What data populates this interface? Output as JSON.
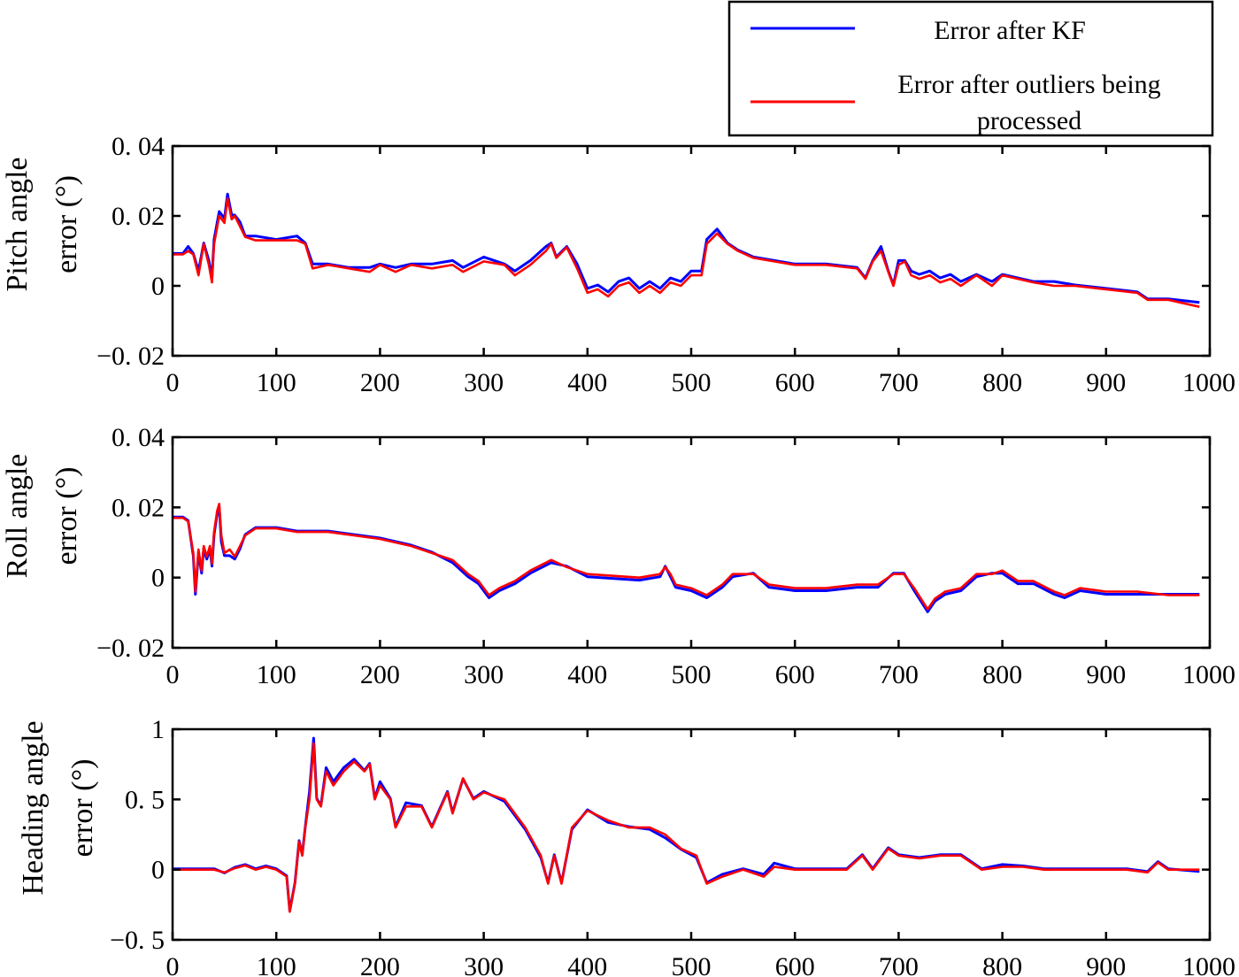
{
  "legend": {
    "placement": "top-right",
    "entries": [
      {
        "label": "Error after KF",
        "color": "#0000ff"
      },
      {
        "label_line1": "Error after outliers being",
        "label_line2": "processed",
        "color": "#ff0000"
      }
    ]
  },
  "chart_data": [
    {
      "type": "line",
      "ylabel_line1": "Pitch angle",
      "ylabel_line2": "error (°)",
      "xlim": [
        0,
        1000
      ],
      "ylim": [
        -0.02,
        0.04
      ],
      "xticks": [
        "0",
        "100",
        "200",
        "300",
        "400",
        "500",
        "600",
        "700",
        "800",
        "900",
        "1000"
      ],
      "yticks": [
        {
          "v": 0.04,
          "label": "0. 04"
        },
        {
          "v": 0.02,
          "label": "0. 02"
        },
        {
          "v": 0,
          "label": "0"
        },
        {
          "v": -0.02,
          "label": "−0. 02"
        }
      ],
      "grid": false,
      "x": [
        0,
        10,
        15,
        20,
        25,
        30,
        35,
        38,
        40,
        45,
        50,
        53,
        57,
        60,
        65,
        70,
        80,
        100,
        120,
        128,
        135,
        150,
        170,
        190,
        200,
        215,
        230,
        250,
        270,
        280,
        300,
        320,
        330,
        345,
        360,
        365,
        370,
        380,
        390,
        400,
        410,
        420,
        430,
        440,
        450,
        460,
        470,
        480,
        490,
        500,
        510,
        515,
        525,
        535,
        545,
        560,
        580,
        600,
        630,
        660,
        668,
        675,
        683,
        690,
        695,
        700,
        706,
        712,
        720,
        730,
        740,
        750,
        760,
        775,
        790,
        800,
        815,
        830,
        850,
        870,
        900,
        930,
        940,
        960,
        990
      ],
      "series": [
        {
          "name": "Error after KF",
          "color": "#0000ff",
          "values": [
            0.009,
            0.009,
            0.011,
            0.009,
            0.004,
            0.012,
            0.007,
            0.002,
            0.013,
            0.021,
            0.019,
            0.026,
            0.02,
            0.02,
            0.018,
            0.014,
            0.014,
            0.013,
            0.014,
            0.012,
            0.006,
            0.006,
            0.005,
            0.005,
            0.006,
            0.005,
            0.006,
            0.006,
            0.007,
            0.005,
            0.008,
            0.006,
            0.004,
            0.007,
            0.011,
            0.012,
            0.008,
            0.011,
            0.006,
            -0.001,
            0.0,
            -0.002,
            0.001,
            0.002,
            -0.001,
            0.001,
            -0.001,
            0.002,
            0.001,
            0.004,
            0.004,
            0.013,
            0.016,
            0.012,
            0.01,
            0.008,
            0.007,
            0.006,
            0.006,
            0.005,
            0.002,
            0.007,
            0.011,
            0.004,
            0.0,
            0.007,
            0.007,
            0.004,
            0.003,
            0.004,
            0.002,
            0.003,
            0.001,
            0.003,
            0.001,
            0.003,
            0.002,
            0.001,
            0.001,
            0.0,
            -0.001,
            -0.002,
            -0.004,
            -0.004,
            -0.005
          ]
        },
        {
          "name": "Error after outliers being processed",
          "color": "#ff0000",
          "values": [
            0.009,
            0.009,
            0.01,
            0.009,
            0.003,
            0.012,
            0.006,
            0.001,
            0.012,
            0.02,
            0.018,
            0.025,
            0.019,
            0.02,
            0.017,
            0.014,
            0.013,
            0.013,
            0.013,
            0.012,
            0.005,
            0.006,
            0.005,
            0.004,
            0.006,
            0.004,
            0.006,
            0.005,
            0.006,
            0.004,
            0.007,
            0.006,
            0.003,
            0.006,
            0.01,
            0.012,
            0.008,
            0.011,
            0.005,
            -0.002,
            -0.001,
            -0.003,
            0.0,
            0.001,
            -0.002,
            0.0,
            -0.002,
            0.001,
            0.0,
            0.003,
            0.003,
            0.012,
            0.015,
            0.012,
            0.01,
            0.008,
            0.007,
            0.006,
            0.006,
            0.005,
            0.002,
            0.007,
            0.01,
            0.004,
            0.0,
            0.006,
            0.007,
            0.003,
            0.002,
            0.003,
            0.001,
            0.002,
            0.0,
            0.003,
            0.0,
            0.003,
            0.002,
            0.001,
            0.0,
            0.0,
            -0.001,
            -0.002,
            -0.004,
            -0.004,
            -0.006
          ]
        }
      ]
    },
    {
      "type": "line",
      "ylabel_line1": "Roll angle",
      "ylabel_line2": "error (°)",
      "xlim": [
        0,
        1000
      ],
      "ylim": [
        -0.02,
        0.04
      ],
      "xticks": [
        "0",
        "100",
        "200",
        "300",
        "400",
        "500",
        "600",
        "700",
        "800",
        "900",
        "1000"
      ],
      "yticks": [
        {
          "v": 0.04,
          "label": "0. 04"
        },
        {
          "v": 0.02,
          "label": "0. 02"
        },
        {
          "v": 0,
          "label": "0"
        },
        {
          "v": -0.02,
          "label": "−0. 02"
        }
      ],
      "grid": false,
      "x": [
        0,
        10,
        15,
        20,
        22,
        25,
        28,
        30,
        33,
        36,
        38,
        40,
        43,
        45,
        47,
        50,
        55,
        60,
        65,
        70,
        80,
        100,
        120,
        150,
        200,
        230,
        250,
        270,
        285,
        295,
        305,
        315,
        330,
        345,
        365,
        380,
        400,
        450,
        470,
        475,
        480,
        485,
        500,
        515,
        530,
        540,
        560,
        575,
        600,
        630,
        660,
        680,
        695,
        705,
        715,
        728,
        735,
        745,
        760,
        775,
        790,
        800,
        815,
        830,
        850,
        860,
        875,
        900,
        930,
        960,
        990
      ],
      "series": [
        {
          "name": "Error after KF",
          "color": "#0000ff",
          "values": [
            0.017,
            0.017,
            0.016,
            0.006,
            -0.005,
            0.007,
            0.001,
            0.008,
            0.005,
            0.008,
            0.003,
            0.012,
            0.018,
            0.02,
            0.01,
            0.006,
            0.006,
            0.005,
            0.008,
            0.012,
            0.014,
            0.014,
            0.013,
            0.013,
            0.011,
            0.009,
            0.007,
            0.004,
            0.0,
            -0.002,
            -0.006,
            -0.004,
            -0.002,
            0.001,
            0.004,
            0.003,
            0.0,
            -0.001,
            0.0,
            0.003,
            0.0,
            -0.003,
            -0.004,
            -0.006,
            -0.003,
            0.0,
            0.001,
            -0.003,
            -0.004,
            -0.004,
            -0.003,
            -0.003,
            0.001,
            0.001,
            -0.004,
            -0.01,
            -0.007,
            -0.005,
            -0.004,
            0.0,
            0.001,
            0.001,
            -0.002,
            -0.002,
            -0.005,
            -0.006,
            -0.004,
            -0.005,
            -0.005,
            -0.005,
            -0.005
          ]
        },
        {
          "name": "Error after outliers being processed",
          "color": "#ff0000",
          "values": [
            0.017,
            0.017,
            0.016,
            0.007,
            -0.004,
            0.008,
            0.002,
            0.009,
            0.006,
            0.009,
            0.004,
            0.013,
            0.019,
            0.021,
            0.012,
            0.007,
            0.008,
            0.006,
            0.009,
            0.012,
            0.014,
            0.014,
            0.013,
            0.013,
            0.011,
            0.009,
            0.007,
            0.005,
            0.001,
            -0.001,
            -0.005,
            -0.003,
            -0.001,
            0.002,
            0.005,
            0.003,
            0.001,
            0.0,
            0.001,
            0.003,
            0.001,
            -0.002,
            -0.003,
            -0.005,
            -0.002,
            0.001,
            0.001,
            -0.002,
            -0.003,
            -0.003,
            -0.002,
            -0.002,
            0.001,
            0.001,
            -0.003,
            -0.009,
            -0.006,
            -0.004,
            -0.003,
            0.001,
            0.001,
            0.002,
            -0.001,
            -0.001,
            -0.004,
            -0.005,
            -0.003,
            -0.004,
            -0.004,
            -0.005,
            -0.005
          ]
        }
      ]
    },
    {
      "type": "line",
      "ylabel_line1": "Heading angle",
      "ylabel_line2": "error (°)",
      "xlim": [
        0,
        1000
      ],
      "ylim": [
        -0.5,
        1
      ],
      "xticks": [
        "0",
        "100",
        "200",
        "300",
        "400",
        "500",
        "600",
        "700",
        "800",
        "900",
        "1000"
      ],
      "yticks": [
        {
          "v": 1,
          "label": "1"
        },
        {
          "v": 0.5,
          "label": "0. 5"
        },
        {
          "v": 0,
          "label": "0"
        },
        {
          "v": -0.5,
          "label": "−0. 5"
        }
      ],
      "grid": false,
      "x": [
        0,
        40,
        50,
        60,
        70,
        80,
        90,
        100,
        110,
        113,
        118,
        122,
        125,
        128,
        132,
        136,
        139,
        143,
        148,
        155,
        165,
        175,
        185,
        190,
        195,
        200,
        210,
        215,
        225,
        240,
        250,
        265,
        270,
        280,
        290,
        300,
        320,
        340,
        355,
        362,
        368,
        375,
        385,
        400,
        420,
        440,
        460,
        475,
        490,
        505,
        515,
        530,
        550,
        570,
        580,
        600,
        650,
        665,
        675,
        690,
        700,
        720,
        740,
        760,
        780,
        800,
        820,
        840,
        880,
        920,
        940,
        950,
        960,
        990
      ],
      "series": [
        {
          "name": "Error after KF",
          "color": "#0000ff",
          "values": [
            0,
            0,
            -0.03,
            0.01,
            0.03,
            0.0,
            0.02,
            0.0,
            -0.05,
            -0.3,
            -0.1,
            0.2,
            0.1,
            0.3,
            0.55,
            0.93,
            0.5,
            0.45,
            0.72,
            0.62,
            0.72,
            0.78,
            0.7,
            0.75,
            0.5,
            0.62,
            0.5,
            0.3,
            0.47,
            0.45,
            0.3,
            0.55,
            0.4,
            0.64,
            0.5,
            0.55,
            0.48,
            0.28,
            0.08,
            -0.1,
            0.1,
            -0.1,
            0.28,
            0.42,
            0.33,
            0.3,
            0.28,
            0.22,
            0.14,
            0.08,
            -0.1,
            -0.04,
            0.0,
            -0.04,
            0.04,
            0.0,
            0.0,
            0.1,
            0.0,
            0.15,
            0.1,
            0.08,
            0.1,
            0.1,
            0.0,
            0.03,
            0.02,
            0.0,
            0.0,
            0.0,
            -0.02,
            0.05,
            0.0,
            -0.02
          ]
        },
        {
          "name": "Error after outliers being processed",
          "color": "#ff0000",
          "values": [
            0,
            0,
            -0.02,
            0.01,
            0.03,
            0.0,
            0.02,
            0.0,
            -0.05,
            -0.3,
            -0.1,
            0.2,
            0.1,
            0.3,
            0.5,
            0.9,
            0.5,
            0.45,
            0.7,
            0.6,
            0.7,
            0.77,
            0.7,
            0.75,
            0.5,
            0.6,
            0.5,
            0.3,
            0.45,
            0.45,
            0.3,
            0.55,
            0.4,
            0.65,
            0.5,
            0.55,
            0.5,
            0.3,
            0.1,
            -0.1,
            0.1,
            -0.1,
            0.3,
            0.42,
            0.35,
            0.3,
            0.3,
            0.25,
            0.15,
            0.1,
            -0.1,
            -0.05,
            0.0,
            -0.05,
            0.02,
            0.0,
            0.0,
            0.1,
            0.0,
            0.15,
            0.1,
            0.08,
            0.1,
            0.1,
            0.0,
            0.02,
            0.02,
            0.0,
            0.0,
            0.0,
            -0.02,
            0.05,
            0.0,
            0.0
          ]
        }
      ]
    }
  ]
}
